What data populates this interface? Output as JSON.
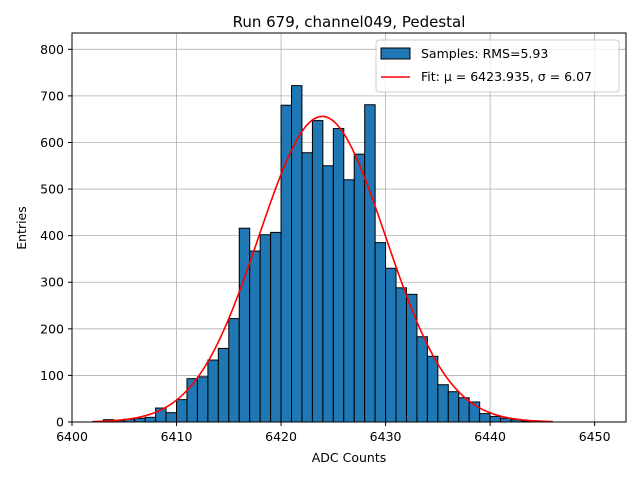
{
  "chart_data": {
    "type": "bar",
    "title": "Run 679, channel049, Pedestal",
    "xlabel": "ADC Counts",
    "ylabel": "Entries",
    "xlim": [
      6400,
      6453
    ],
    "ylim": [
      0,
      835
    ],
    "xticks": [
      6400,
      6410,
      6420,
      6430,
      6440,
      6450
    ],
    "yticks": [
      0,
      100,
      200,
      300,
      400,
      500,
      600,
      700,
      800
    ],
    "grid": true,
    "legend_position": "top-right",
    "bin_width": 1,
    "bins": {
      "x_left": [
        6402,
        6403,
        6404,
        6405,
        6406,
        6407,
        6408,
        6409,
        6410,
        6411,
        6412,
        6413,
        6414,
        6415,
        6416,
        6417,
        6418,
        6419,
        6420,
        6421,
        6422,
        6423,
        6424,
        6425,
        6426,
        6427,
        6428,
        6429,
        6430,
        6431,
        6432,
        6433,
        6434,
        6435,
        6436,
        6437,
        6438,
        6439,
        6440,
        6441,
        6442,
        6443,
        6444,
        6445
      ],
      "values": [
        1,
        5,
        3,
        6,
        8,
        10,
        30,
        20,
        48,
        93,
        97,
        133,
        158,
        222,
        416,
        367,
        402,
        407,
        680,
        722,
        578,
        647,
        550,
        630,
        520,
        575,
        681,
        385,
        330,
        288,
        274,
        183,
        141,
        80,
        65,
        52,
        43,
        18,
        12,
        8,
        5,
        2,
        1,
        0
      ]
    },
    "series": [
      {
        "name": "Samples: RMS=5.93",
        "kind": "histogram",
        "color": "#1f77b4",
        "edgecolor": "#000000"
      },
      {
        "name": "Fit: μ = 6423.935, σ = 6.07",
        "kind": "gaussian",
        "color": "#ff0000",
        "mu": 6423.935,
        "sigma": 6.07,
        "amplitude": 656,
        "x_range": [
          6402,
          6446
        ]
      }
    ]
  }
}
